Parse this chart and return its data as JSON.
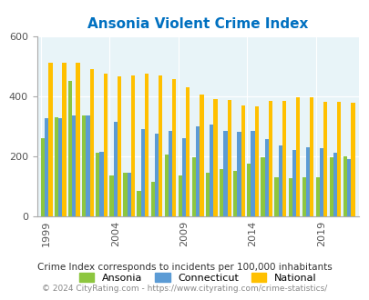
{
  "title": "Ansonia Violent Crime Index",
  "years": [
    1999,
    2000,
    2001,
    2002,
    2003,
    2004,
    2005,
    2006,
    2007,
    2008,
    2009,
    2010,
    2011,
    2012,
    2013,
    2014,
    2015,
    2016,
    2017,
    2018,
    2019,
    2020,
    2021
  ],
  "ansonia": [
    258,
    330,
    450,
    335,
    210,
    135,
    145,
    85,
    115,
    205,
    135,
    195,
    145,
    155,
    150,
    175,
    195,
    130,
    125,
    130,
    130,
    195,
    200
  ],
  "connecticut": [
    325,
    325,
    335,
    335,
    215,
    315,
    145,
    290,
    275,
    285,
    260,
    300,
    305,
    285,
    280,
    285,
    255,
    235,
    220,
    230,
    225,
    210,
    190
  ],
  "national": [
    510,
    510,
    510,
    490,
    475,
    465,
    470,
    475,
    470,
    455,
    430,
    405,
    390,
    388,
    367,
    365,
    383,
    385,
    395,
    397,
    382,
    380,
    378
  ],
  "ansonia_color": "#8dc63f",
  "connecticut_color": "#5b9bd5",
  "national_color": "#ffc000",
  "bg_color": "#e8f4f8",
  "title_color": "#0070c0",
  "ylim": [
    0,
    600
  ],
  "yticks": [
    0,
    200,
    400,
    600
  ],
  "xlabel_ticks": [
    1999,
    2004,
    2009,
    2014,
    2019
  ],
  "footnote1": "Crime Index corresponds to incidents per 100,000 inhabitants",
  "footnote2": "© 2024 CityRating.com - https://www.cityrating.com/crime-statistics/",
  "legend_labels": [
    "Ansonia",
    "Connecticut",
    "National"
  ],
  "bar_width": 0.28
}
